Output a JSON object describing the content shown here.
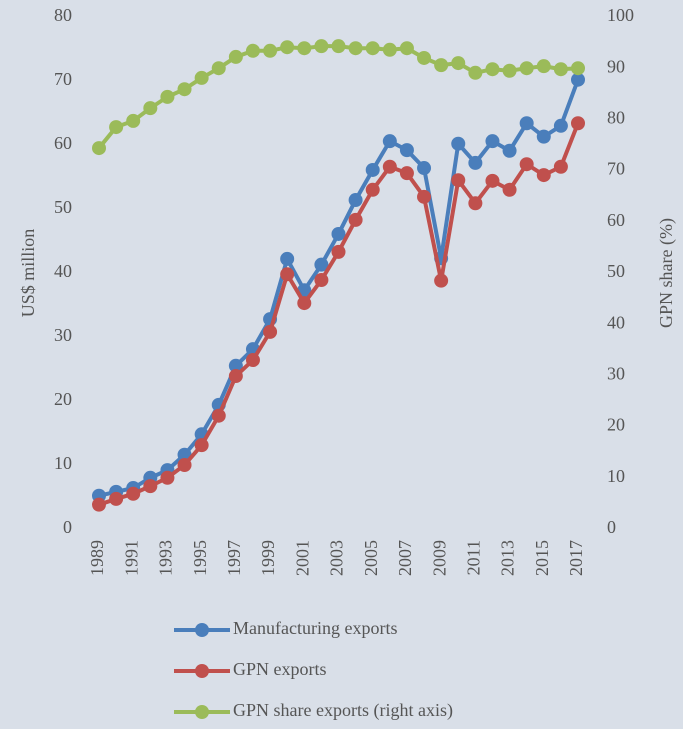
{
  "chart_data": {
    "type": "line",
    "ylabel": "US$ million",
    "y2label": "GPN share (%)",
    "x": [
      1989,
      1990,
      1991,
      1992,
      1993,
      1994,
      1995,
      1996,
      1997,
      1998,
      1999,
      2000,
      2001,
      2002,
      2003,
      2004,
      2005,
      2006,
      2007,
      2008,
      2009,
      2010,
      2011,
      2012,
      2013,
      2014,
      2015,
      2016,
      2017
    ],
    "xlim": [
      1989,
      2017
    ],
    "xticks": [
      1989,
      1991,
      1993,
      1995,
      1997,
      1999,
      2001,
      2003,
      2005,
      2007,
      2009,
      2011,
      2013,
      2015,
      2017
    ],
    "ylim": [
      0,
      80
    ],
    "yticks": [
      0,
      10,
      20,
      30,
      40,
      50,
      60,
      70,
      80
    ],
    "y2lim": [
      0,
      100
    ],
    "y2ticks": [
      0,
      10,
      20,
      30,
      40,
      50,
      60,
      70,
      80,
      90,
      100
    ],
    "grid": false,
    "legend": "bottom",
    "series": [
      {
        "name": "Manufacturing exports",
        "color": "#4a7ebb",
        "values": [
          5.2,
          5.8,
          6.4,
          8.0,
          9.2,
          11.6,
          14.8,
          19.4,
          25.5,
          28.1,
          32.8,
          42.2,
          37.3,
          41.3,
          46.1,
          51.4,
          56.1,
          60.6,
          59.2,
          56.4,
          42.3,
          60.2,
          57.2,
          60.6,
          59.1,
          63.4,
          61.3,
          63.0,
          70.2
        ]
      },
      {
        "name": "GPN exports",
        "color": "#c0504d",
        "values": [
          3.8,
          4.7,
          5.5,
          6.7,
          8.0,
          10.0,
          13.1,
          17.7,
          23.9,
          26.4,
          30.8,
          39.8,
          35.3,
          38.9,
          43.3,
          48.3,
          53.0,
          56.6,
          55.6,
          51.9,
          38.8,
          54.5,
          50.9,
          54.4,
          53.0,
          57.0,
          55.3,
          56.6,
          63.4
        ]
      },
      {
        "name": "GPN share exports (right axis)",
        "color": "#9bbb59",
        "axis": "y2",
        "values": [
          74.4,
          78.5,
          79.7,
          82.2,
          84.4,
          85.9,
          88.1,
          90.0,
          92.2,
          93.4,
          93.4,
          94.1,
          93.9,
          94.3,
          94.3,
          93.9,
          93.9,
          93.6,
          93.9,
          92.0,
          90.6,
          91.0,
          89.1,
          89.8,
          89.5,
          90.0,
          90.4,
          89.8,
          90.0
        ]
      }
    ]
  }
}
